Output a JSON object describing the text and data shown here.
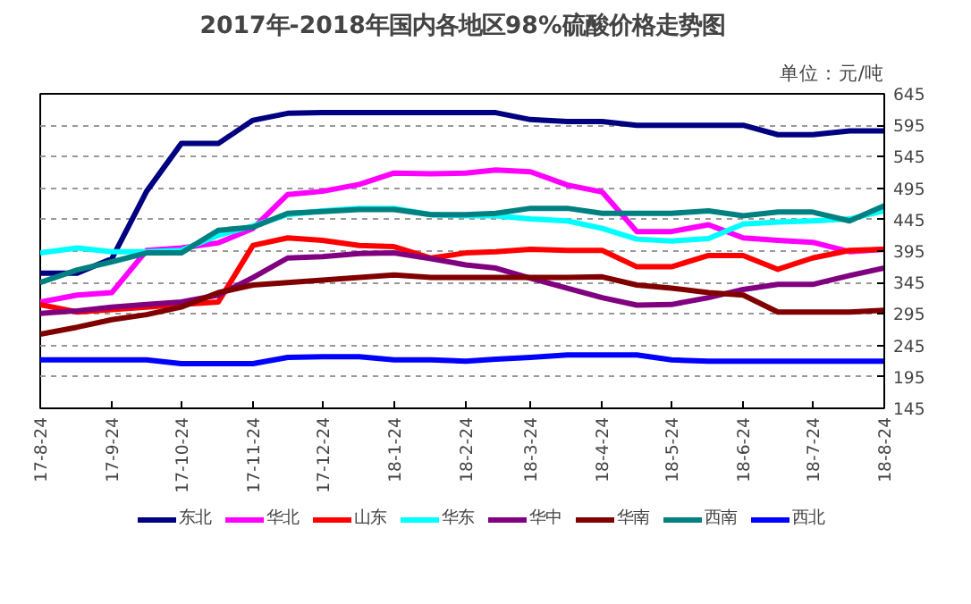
{
  "chart_data": {
    "type": "line",
    "title": "2017年-2018年国内各地区98%硫酸价格走势图",
    "annotations": [
      "单位：元/吨"
    ],
    "x": [
      "2017-08-24",
      "2017-09-09",
      "2017-09-24",
      "2017-10-09",
      "2017-10-24",
      "2017-11-09",
      "2017-11-24",
      "2017-12-09",
      "2017-12-24",
      "2018-01-09",
      "2018-01-24",
      "2018-02-09",
      "2018-02-24",
      "2018-03-09",
      "2018-03-24",
      "2018-04-09",
      "2018-04-24",
      "2018-05-09",
      "2018-05-24",
      "2018-06-09",
      "2018-06-24",
      "2018-07-09",
      "2018-07-24",
      "2018-08-09",
      "2018-08-24"
    ],
    "series": [
      {
        "name": "东北",
        "color": "#000080",
        "values": [
          360,
          360,
          383,
          490,
          566,
          566,
          603,
          614,
          615,
          615,
          615,
          615,
          615,
          615,
          604,
          601,
          601,
          595,
          595,
          595,
          595,
          580,
          580,
          586,
          586
        ]
      },
      {
        "name": "华北",
        "color": "#ff00ff",
        "values": [
          314,
          325,
          329,
          396,
          400,
          408,
          431,
          485,
          490,
          501,
          519,
          518,
          519,
          524,
          521,
          500,
          489,
          426,
          426,
          437,
          416,
          412,
          409,
          394,
          398
        ]
      },
      {
        "name": "山东",
        "color": "#ff0000",
        "values": [
          310,
          298,
          302,
          306,
          310,
          314,
          404,
          416,
          412,
          404,
          402,
          384,
          392,
          394,
          398,
          396,
          396,
          370,
          370,
          388,
          388,
          366,
          384,
          396,
          398
        ]
      },
      {
        "name": "华东",
        "color": "#00ffff",
        "values": [
          392,
          400,
          394,
          394,
          396,
          420,
          435,
          453,
          459,
          463,
          463,
          453,
          451,
          451,
          446,
          443,
          431,
          414,
          411,
          415,
          438,
          441,
          443,
          446,
          459
        ]
      },
      {
        "name": "华中",
        "color": "#800080",
        "values": [
          296,
          300,
          306,
          310,
          314,
          325,
          353,
          384,
          386,
          391,
          392,
          383,
          373,
          368,
          352,
          336,
          321,
          309,
          310,
          321,
          334,
          342,
          342,
          356,
          368
        ]
      },
      {
        "name": "华南",
        "color": "#800000",
        "values": [
          263,
          274,
          286,
          294,
          306,
          329,
          341,
          345,
          349,
          353,
          357,
          353,
          353,
          353,
          353,
          353,
          354,
          341,
          336,
          329,
          325,
          298,
          298,
          298,
          301
        ]
      },
      {
        "name": "西南",
        "color": "#008080",
        "values": [
          345,
          365,
          378,
          392,
          392,
          428,
          433,
          455,
          458,
          461,
          461,
          453,
          453,
          455,
          463,
          463,
          455,
          455,
          455,
          459,
          451,
          457,
          457,
          443,
          467
        ]
      },
      {
        "name": "西北",
        "color": "#0000ff",
        "values": [
          222,
          222,
          222,
          222,
          216,
          216,
          216,
          226,
          227,
          227,
          222,
          222,
          220,
          223,
          226,
          230,
          230,
          230,
          222,
          220,
          220,
          220,
          220,
          220,
          220
        ]
      }
    ],
    "xlim": [
      "2017-08-24",
      "2018-08-24"
    ],
    "xticks": [
      {
        "value": "2017-08-24",
        "label": "17-8-24"
      },
      {
        "value": "2017-09-24",
        "label": "17-9-24"
      },
      {
        "value": "2017-10-24",
        "label": "17-10-24"
      },
      {
        "value": "2017-11-24",
        "label": "17-11-24"
      },
      {
        "value": "2017-12-24",
        "label": "17-12-24"
      },
      {
        "value": "2018-01-24",
        "label": "18-1-24"
      },
      {
        "value": "2018-02-24",
        "label": "18-2-24"
      },
      {
        "value": "2018-03-24",
        "label": "18-3-24"
      },
      {
        "value": "2018-04-24",
        "label": "18-4-24"
      },
      {
        "value": "2018-05-24",
        "label": "18-5-24"
      },
      {
        "value": "2018-06-24",
        "label": "18-6-24"
      },
      {
        "value": "2018-07-24",
        "label": "18-7-24"
      },
      {
        "value": "2018-08-24",
        "label": "18-8-24"
      }
    ],
    "ylim": [
      145,
      645
    ],
    "yticks": [
      145,
      195,
      245,
      295,
      345,
      395,
      445,
      495,
      545,
      595,
      645
    ],
    "grid": "y",
    "legend": "bottom",
    "marker": "none",
    "line_style": "solid"
  }
}
